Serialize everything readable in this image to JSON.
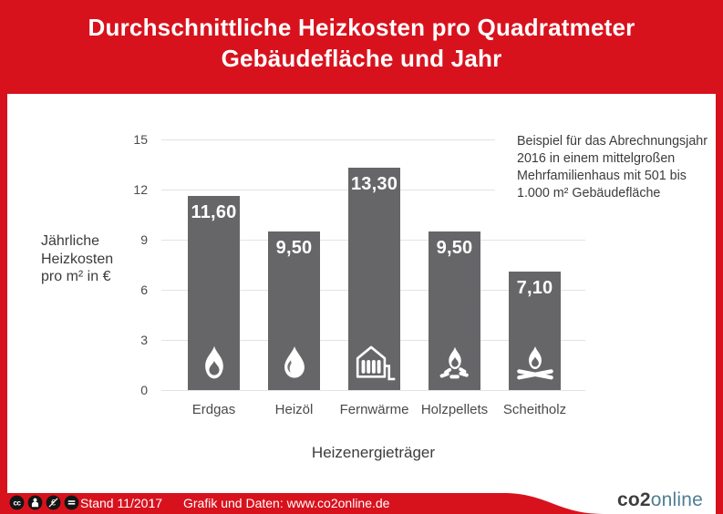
{
  "header": {
    "title_line1": "Durchschnittliche Heizkosten pro Quadratmeter",
    "title_line2": "Gebäudefläche und Jahr"
  },
  "chart_data": {
    "type": "bar",
    "title": "Durchschnittliche Heizkosten pro Quadratmeter Gebäudefläche und Jahr",
    "categories": [
      "Erdgas",
      "Heizöl",
      "Fernwärme",
      "Holzpellets",
      "Scheitholz"
    ],
    "values": [
      11.6,
      9.5,
      13.3,
      9.5,
      7.1
    ],
    "value_labels": [
      "11,60",
      "9,50",
      "13,30",
      "9,50",
      "7,10"
    ],
    "icons": [
      "gas-flame-icon",
      "oil-drop-icon",
      "district-heating-icon",
      "wood-pellets-icon",
      "firewood-icon"
    ],
    "xlabel": "Heizenergieträger",
    "ylabel": "Jährliche Heizkosten pro m² in €",
    "ylabel_lines": [
      "Jährliche",
      "Heizkosten",
      "pro m² in €"
    ],
    "yticks": [
      0,
      3,
      6,
      9,
      12,
      15
    ],
    "ylim": [
      0,
      15
    ],
    "grid": true,
    "legend": "none",
    "bar_color": "#666669",
    "annotation": "Beispiel für das Abrechnungsjahr 2016 in einem mittelgroßen Mehrfamilienhaus mit 501 bis 1.000 m² Gebäudefläche"
  },
  "annotation": {
    "lines": [
      "Beispiel für das Abrechnungsjahr",
      "2016 in einem mittelgroßen",
      "Mehrfamilienhaus mit 501 bis",
      "1.000 m² Gebäudefläche"
    ]
  },
  "footer": {
    "license_icons": [
      "cc-icon",
      "cc-by-icon",
      "cc-nc-icon",
      "cc-nd-icon"
    ],
    "stand": "Stand 11/2017",
    "separator": "I",
    "credit": "Grafik und Daten: www.co2online.de",
    "logo_co2": "co2",
    "logo_online": "online"
  },
  "colors": {
    "brand_red": "#D8121D",
    "bar_gray": "#666669",
    "grid_gray": "#E3E3E3",
    "logo_teal": "#4E7E92",
    "logo_dark": "#3E3D40"
  }
}
